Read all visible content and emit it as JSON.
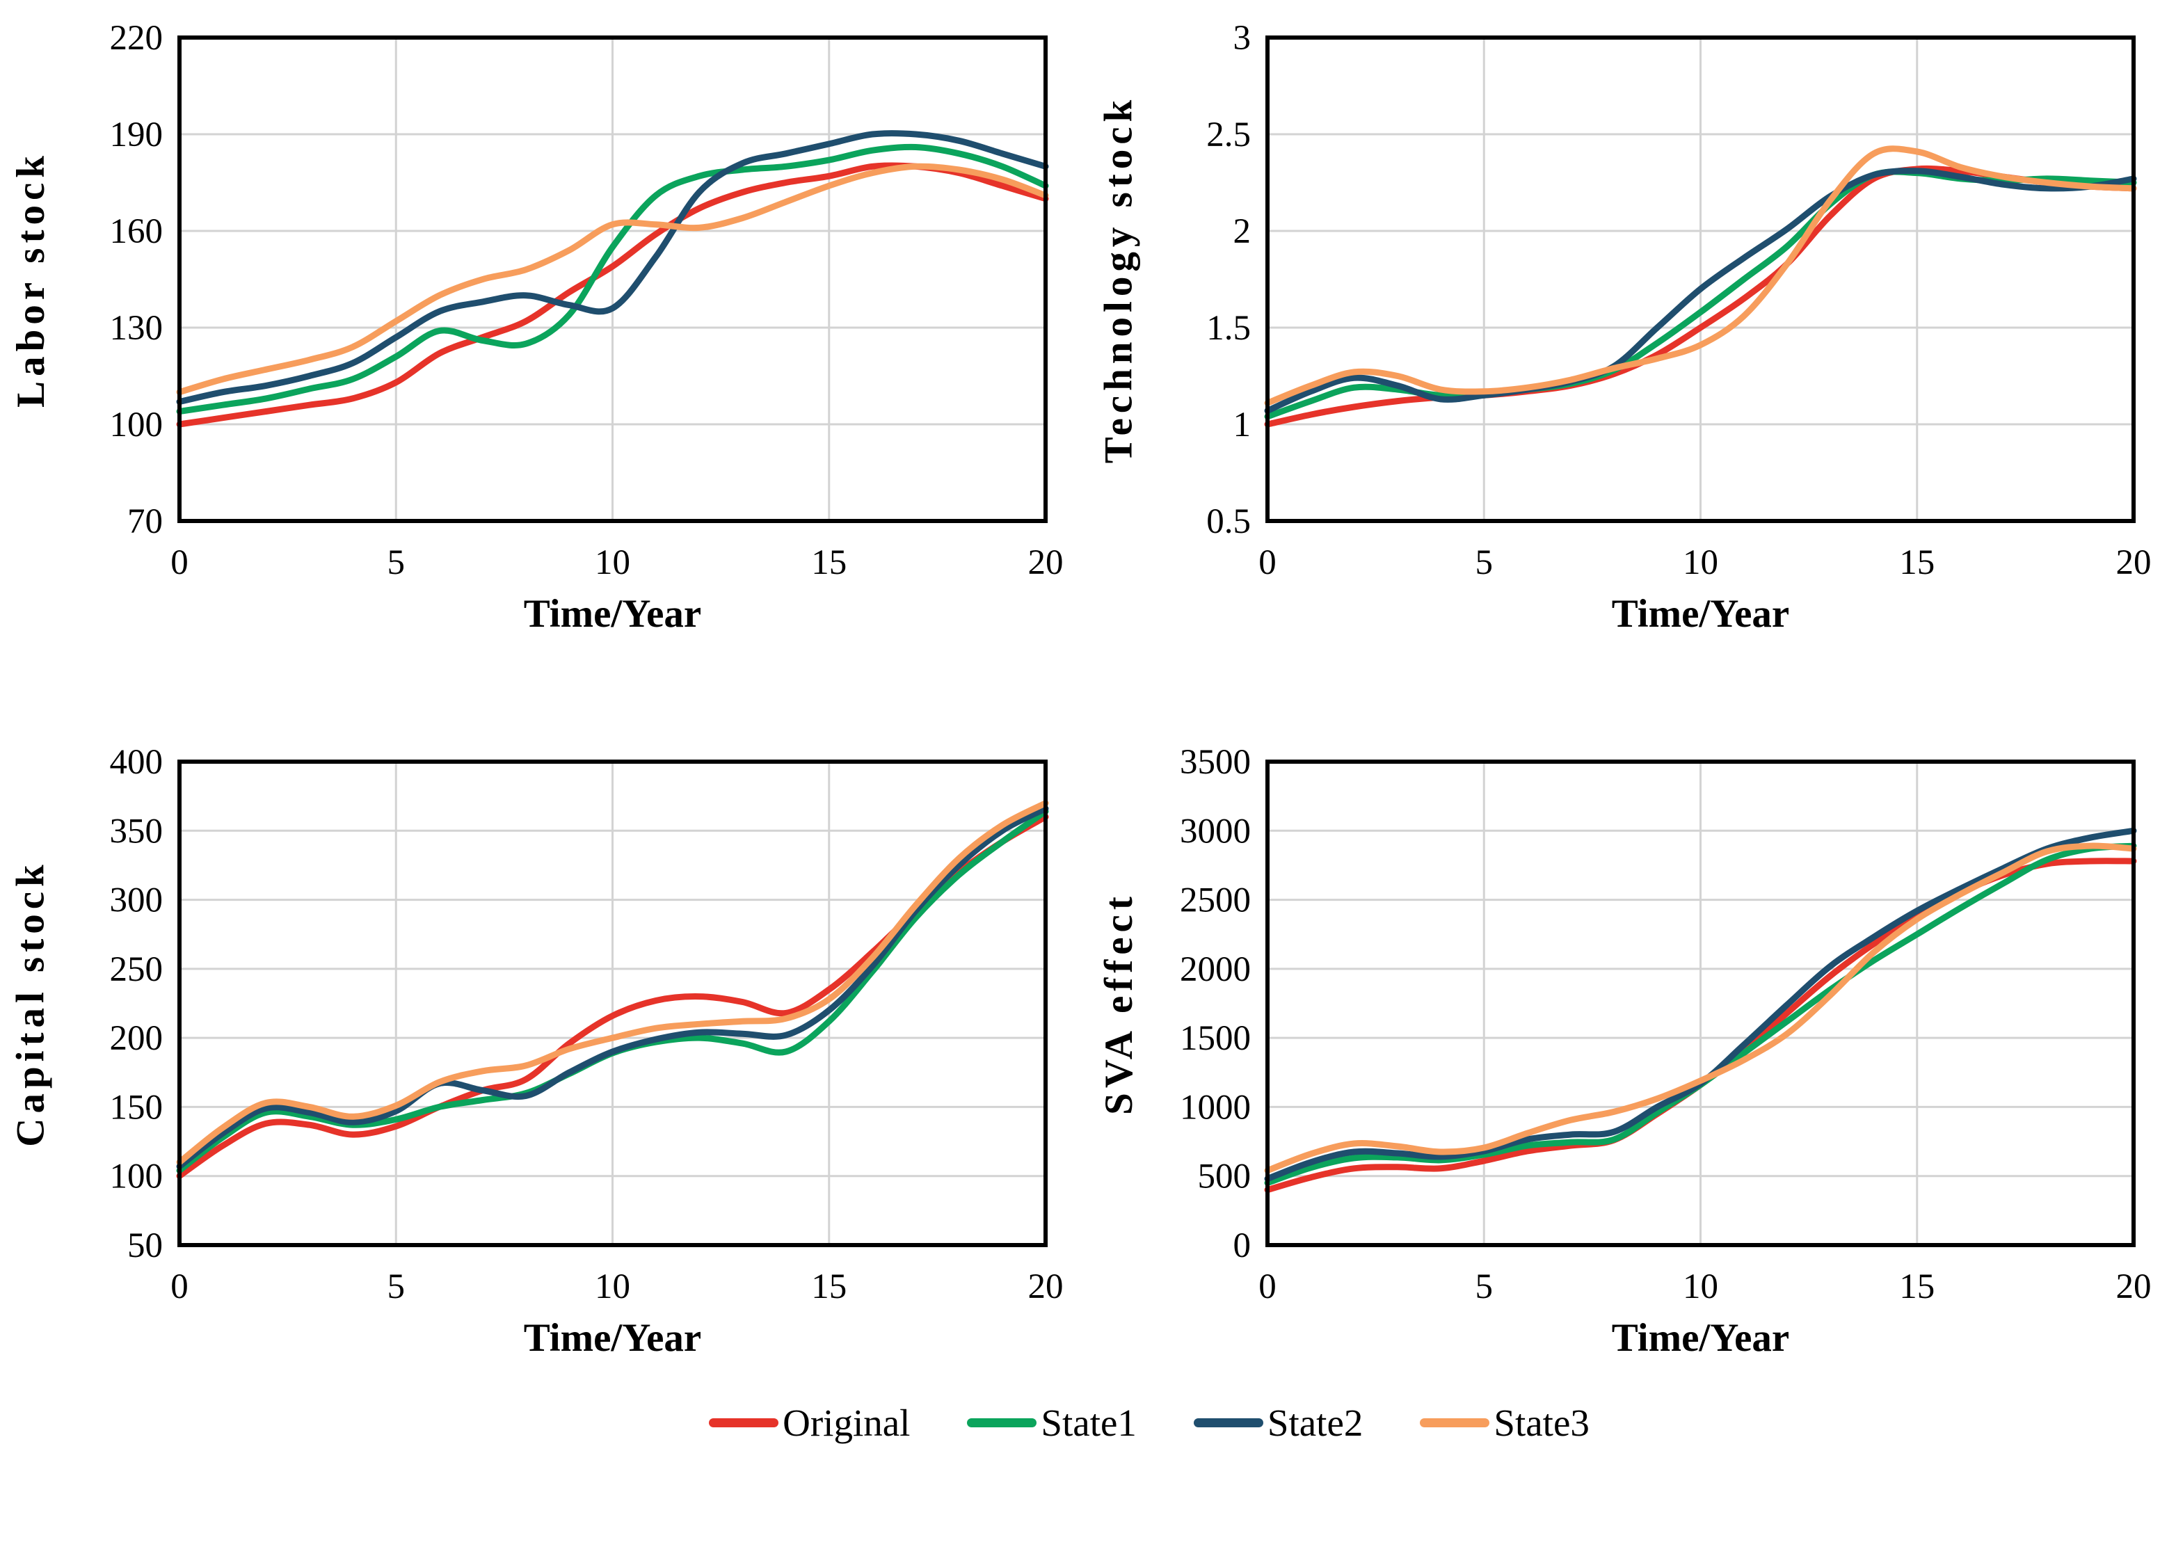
{
  "styles": {
    "background": "#ffffff",
    "grid_color": "#d3d3d3",
    "axis_color": "#000000",
    "text_color": "#000000"
  },
  "legend": {
    "items": [
      {
        "label": "Original",
        "color": "#e63329"
      },
      {
        "label": "State1",
        "color": "#0ba45c"
      },
      {
        "label": "State2",
        "color": "#1f4e6e"
      },
      {
        "label": "State3",
        "color": "#f79d5c"
      }
    ]
  },
  "chart_data": [
    {
      "type": "line",
      "title": "",
      "ylabel": "Labor stock",
      "xlabel": "Time/Year",
      "xlim": [
        0,
        20
      ],
      "ylim": [
        70,
        220
      ],
      "xticks": [
        0,
        5,
        10,
        15,
        20
      ],
      "xtick_labels": [
        "0",
        "5",
        "10",
        "15",
        "20"
      ],
      "yticks": [
        70,
        100,
        130,
        160,
        190,
        220
      ],
      "ytick_labels": [
        "70",
        "100",
        "130",
        "160",
        "190",
        "220"
      ],
      "grid": true,
      "x": [
        0,
        1,
        2,
        3,
        4,
        5,
        6,
        7,
        8,
        9,
        10,
        11,
        12,
        13,
        14,
        15,
        16,
        17,
        18,
        19,
        20
      ],
      "series": [
        {
          "name": "Original",
          "color": "#e63329",
          "values": [
            100,
            102,
            104,
            106,
            108,
            113,
            122,
            127,
            132,
            141,
            149,
            159,
            167,
            172,
            175,
            177,
            180,
            180,
            178,
            174,
            170
          ]
        },
        {
          "name": "State1",
          "color": "#0ba45c",
          "values": [
            104,
            106,
            108,
            111,
            114,
            121,
            129,
            126,
            125,
            134,
            155,
            171,
            177,
            179,
            180,
            182,
            185,
            186,
            184,
            180,
            174
          ]
        },
        {
          "name": "State2",
          "color": "#1f4e6e",
          "values": [
            107,
            110,
            112,
            115,
            119,
            127,
            135,
            138,
            140,
            137,
            136,
            152,
            172,
            181,
            184,
            187,
            190,
            190,
            188,
            184,
            180
          ]
        },
        {
          "name": "State3",
          "color": "#f79d5c",
          "values": [
            110,
            114,
            117,
            120,
            124,
            132,
            140,
            145,
            148,
            154,
            162,
            162,
            161,
            164,
            169,
            174,
            178,
            180,
            179,
            176,
            171
          ]
        }
      ]
    },
    {
      "type": "line",
      "title": "",
      "ylabel": "Technology stock",
      "xlabel": "Time/Year",
      "xlim": [
        0,
        20
      ],
      "ylim": [
        0.5,
        3
      ],
      "xticks": [
        0,
        5,
        10,
        15,
        20
      ],
      "xtick_labels": [
        "0",
        "5",
        "10",
        "15",
        "20"
      ],
      "yticks": [
        0.5,
        1,
        1.5,
        2,
        2.5,
        3
      ],
      "ytick_labels": [
        "0.5",
        "1",
        "1.5",
        "2",
        "2.5",
        "3"
      ],
      "grid": true,
      "x": [
        0,
        1,
        2,
        3,
        4,
        5,
        6,
        7,
        8,
        9,
        10,
        11,
        12,
        13,
        14,
        15,
        16,
        17,
        18,
        19,
        20
      ],
      "series": [
        {
          "name": "Original",
          "color": "#e63329",
          "values": [
            1.0,
            1.05,
            1.09,
            1.12,
            1.14,
            1.15,
            1.17,
            1.2,
            1.26,
            1.36,
            1.5,
            1.65,
            1.83,
            2.08,
            2.27,
            2.32,
            2.31,
            2.28,
            2.25,
            2.23,
            2.22
          ]
        },
        {
          "name": "State1",
          "color": "#0ba45c",
          "values": [
            1.04,
            1.12,
            1.19,
            1.18,
            1.15,
            1.16,
            1.18,
            1.21,
            1.28,
            1.42,
            1.58,
            1.75,
            1.92,
            2.14,
            2.29,
            2.3,
            2.27,
            2.26,
            2.27,
            2.26,
            2.25
          ]
        },
        {
          "name": "State2",
          "color": "#1f4e6e",
          "values": [
            1.07,
            1.17,
            1.24,
            1.2,
            1.13,
            1.15,
            1.18,
            1.22,
            1.3,
            1.5,
            1.7,
            1.86,
            2.01,
            2.18,
            2.29,
            2.31,
            2.28,
            2.24,
            2.22,
            2.23,
            2.27
          ]
        },
        {
          "name": "State3",
          "color": "#f79d5c",
          "values": [
            1.11,
            1.2,
            1.27,
            1.25,
            1.18,
            1.17,
            1.19,
            1.23,
            1.29,
            1.34,
            1.41,
            1.56,
            1.83,
            2.16,
            2.4,
            2.41,
            2.33,
            2.28,
            2.25,
            2.23,
            2.22
          ]
        }
      ]
    },
    {
      "type": "line",
      "title": "",
      "ylabel": "Capital stock",
      "xlabel": "Time/Year",
      "xlim": [
        0,
        20
      ],
      "ylim": [
        50,
        400
      ],
      "xticks": [
        0,
        5,
        10,
        15,
        20
      ],
      "xtick_labels": [
        "0",
        "5",
        "10",
        "15",
        "20"
      ],
      "yticks": [
        50,
        100,
        150,
        200,
        250,
        300,
        350,
        400
      ],
      "ytick_labels": [
        "50",
        "100",
        "150",
        "200",
        "250",
        "300",
        "350",
        "400"
      ],
      "grid": true,
      "x": [
        0,
        1,
        2,
        3,
        4,
        5,
        6,
        7,
        8,
        9,
        10,
        11,
        12,
        13,
        14,
        15,
        16,
        17,
        18,
        19,
        20
      ],
      "series": [
        {
          "name": "Original",
          "color": "#e63329",
          "values": [
            100,
            122,
            138,
            137,
            130,
            136,
            150,
            162,
            170,
            196,
            216,
            227,
            230,
            226,
            218,
            235,
            262,
            292,
            320,
            342,
            360
          ]
        },
        {
          "name": "State1",
          "color": "#0ba45c",
          "values": [
            104,
            128,
            146,
            143,
            137,
            141,
            150,
            155,
            160,
            174,
            189,
            197,
            200,
            196,
            190,
            212,
            248,
            287,
            318,
            342,
            364
          ]
        },
        {
          "name": "State2",
          "color": "#1f4e6e",
          "values": [
            107,
            131,
            149,
            146,
            139,
            147,
            167,
            162,
            158,
            175,
            190,
            199,
            204,
            203,
            202,
            220,
            252,
            292,
            325,
            350,
            366
          ]
        },
        {
          "name": "State3",
          "color": "#f79d5c",
          "values": [
            110,
            135,
            153,
            150,
            143,
            151,
            168,
            176,
            180,
            192,
            200,
            207,
            210,
            212,
            214,
            228,
            258,
            296,
            330,
            354,
            370
          ]
        }
      ]
    },
    {
      "type": "line",
      "title": "",
      "ylabel": "SVA effect",
      "xlabel": "Time/Year",
      "xlim": [
        0,
        20
      ],
      "ylim": [
        0,
        3500
      ],
      "xticks": [
        0,
        5,
        10,
        15,
        20
      ],
      "xtick_labels": [
        "0",
        "5",
        "10",
        "15",
        "20"
      ],
      "yticks": [
        0,
        500,
        1000,
        1500,
        2000,
        2500,
        3000,
        3500
      ],
      "ytick_labels": [
        "0",
        "500",
        "1000",
        "1500",
        "2000",
        "2500",
        "3000",
        "3500"
      ],
      "grid": true,
      "x": [
        0,
        1,
        2,
        3,
        4,
        5,
        6,
        7,
        8,
        9,
        10,
        11,
        12,
        13,
        14,
        15,
        16,
        17,
        18,
        19,
        20
      ],
      "series": [
        {
          "name": "Original",
          "color": "#e63329",
          "values": [
            400,
            490,
            555,
            565,
            555,
            610,
            680,
            720,
            760,
            950,
            1160,
            1400,
            1680,
            1950,
            2180,
            2380,
            2550,
            2680,
            2760,
            2780,
            2780
          ]
        },
        {
          "name": "State1",
          "color": "#0ba45c",
          "values": [
            450,
            560,
            630,
            635,
            615,
            655,
            720,
            745,
            765,
            960,
            1160,
            1390,
            1620,
            1850,
            2060,
            2250,
            2440,
            2620,
            2790,
            2870,
            2890
          ]
        },
        {
          "name": "State2",
          "color": "#1f4e6e",
          "values": [
            480,
            600,
            675,
            665,
            640,
            680,
            765,
            800,
            820,
            1000,
            1170,
            1450,
            1740,
            2020,
            2230,
            2420,
            2580,
            2730,
            2870,
            2950,
            3000
          ]
        },
        {
          "name": "State3",
          "color": "#f79d5c",
          "values": [
            540,
            660,
            735,
            715,
            675,
            705,
            810,
            905,
            965,
            1060,
            1190,
            1340,
            1530,
            1810,
            2120,
            2360,
            2540,
            2700,
            2850,
            2890,
            2870
          ]
        }
      ]
    }
  ]
}
